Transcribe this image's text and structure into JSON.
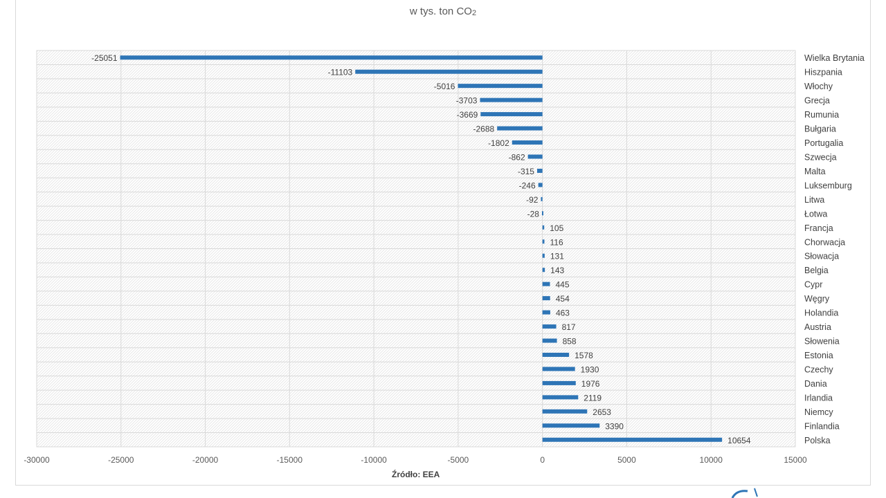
{
  "chart_data": {
    "type": "bar",
    "orientation": "horizontal",
    "subtitle": "w tys. ton CO",
    "subtitle_subscript": "2",
    "source": "Źródło: EEA",
    "xlim": [
      -30000,
      15000
    ],
    "xticks": [
      -30000,
      -25000,
      -20000,
      -15000,
      -10000,
      -5000,
      0,
      5000,
      10000,
      15000
    ],
    "grid": true,
    "legend": "none",
    "bar_color": "#2e75b6",
    "categories": [
      "Wielka Brytania",
      "Hiszpania",
      "Włochy",
      "Grecja",
      "Rumunia",
      "Bułgaria",
      "Portugalia",
      "Szwecja",
      "Malta",
      "Luksemburg",
      "Litwa",
      "Łotwa",
      "Francja",
      "Chorwacja",
      "Słowacja",
      "Belgia",
      "Cypr",
      "Węgry",
      "Holandia",
      "Austria",
      "Słowenia",
      "Estonia",
      "Czechy",
      "Dania",
      "Irlandia",
      "Niemcy",
      "Finlandia",
      "Polska"
    ],
    "values": [
      -25051,
      -11103,
      -5016,
      -3703,
      -3669,
      -2688,
      -1802,
      -862,
      -315,
      -246,
      -92,
      -28,
      105,
      116,
      131,
      143,
      445,
      454,
      463,
      817,
      858,
      1578,
      1930,
      1976,
      2119,
      2653,
      3390,
      10654
    ]
  }
}
